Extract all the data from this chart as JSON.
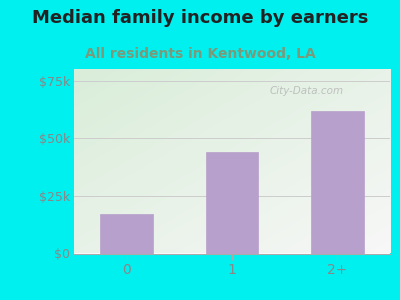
{
  "title": "Median family income by earners",
  "subtitle": "All residents in Kentwood, LA",
  "categories": [
    "0",
    "1",
    "2+"
  ],
  "values": [
    17000,
    44000,
    62000
  ],
  "bar_color": "#b8a0cc",
  "title_color": "#222222",
  "subtitle_color": "#7a9a7a",
  "outer_bg": "#00f0f0",
  "plot_bg_top_left": "#d8eed8",
  "plot_bg_bottom_right": "#f8f8f8",
  "yticks": [
    0,
    25000,
    50000,
    75000
  ],
  "ytick_labels": [
    "$0",
    "$25k",
    "$50k",
    "$75k"
  ],
  "ylim": [
    0,
    80000
  ],
  "grid_color": "#cccccc",
  "watermark": "City-Data.com",
  "title_fontsize": 13,
  "subtitle_fontsize": 10,
  "tick_label_color": "#888888"
}
